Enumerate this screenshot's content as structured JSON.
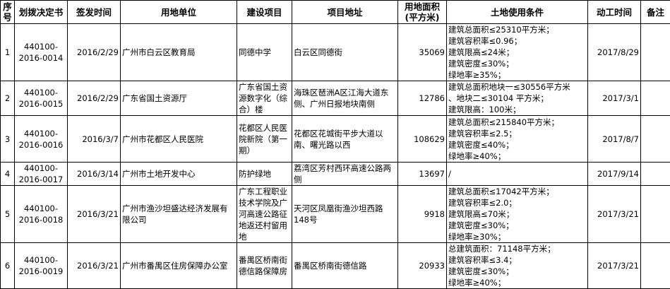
{
  "headers": [
    "序号",
    "划拨决定书",
    "签发时间",
    "用地单位",
    "建设项目",
    "项目地址",
    "用地面积(平方米)",
    "土地使用条件",
    "动工时间",
    "备注"
  ],
  "rows": [
    {
      "no": "1",
      "decision": "440100-2016-0014",
      "date": "2016/2/29",
      "unit": "广州市白云区教育局",
      "project": "同德中学",
      "address": "白云区同德街",
      "area": "35069",
      "conditions": [
        "建筑总面积≤25310平方米；",
        "建筑容积率≤0.96；",
        "建筑限高≤24米；",
        "建筑密度≤30%；",
        "绿地率≥35%；"
      ],
      "start": "2017/8/29",
      "remark": ""
    },
    {
      "no": "2",
      "decision": "440100-2016-0015",
      "date": "2016/2/29",
      "unit": "广东省国土资源厅",
      "project": "广东省国土资源数字化（综合）楼",
      "address": "海珠区琶洲A区江海大道东侧、广州日报地块南侧",
      "area": "12786",
      "conditions": [
        "建筑总面积地块一≤30556平方米",
        "、地块二≤30104 平方米；",
        "建筑限高：100米；"
      ],
      "start": "2017/3/1",
      "remark": ""
    },
    {
      "no": "3",
      "decision": "440100-2016-0016",
      "date": "2016/3/7",
      "unit": "广州市花都区人民医院",
      "project": "花都区人民医院新院（第一期）",
      "address": "花都区花城街平步大道以南、曙光路以西",
      "area": "108629",
      "conditions": [
        "建筑总面积≤215840平方米；",
        "建筑容积率≤2.5；",
        "建筑密度≤40%；",
        "绿地率≥40%；"
      ],
      "start": "2017/8/7",
      "remark": ""
    },
    {
      "no": "4",
      "decision": "440100-2016-0017",
      "date": "2016/3/14",
      "unit": "广州市土地开发中心",
      "project": "防护绿地",
      "address": "荔湾区芳村西环高速公路两侧",
      "area": "13697",
      "conditions": [
        "/"
      ],
      "start": "2017/9/14",
      "remark": ""
    },
    {
      "no": "5",
      "decision": "440100-2016-0018",
      "date": "2016/3/21",
      "unit": "广州市渔沙坦盛达经济发展有限公司",
      "project": "广东工程职业技术学院及广河高速公路征地返还村留用地",
      "address": "天河区凤凰街渔沙坦西路148号",
      "area": "9918",
      "conditions": [
        "建筑总面积≤17042平方米；",
        "建筑容积率≤2.0；",
        "建筑限高≤70米；",
        "建筑密度≤30%；",
        "绿地率≥30%；"
      ],
      "start": "2017/3/21",
      "remark": ""
    },
    {
      "no": "6",
      "decision": "440100-2016-0019",
      "date": "2016/3/21",
      "unit": "广州市番禺区住房保障办公室",
      "project": "番禺区桥南街德信路保障房",
      "address": "番禺区桥南街德信路",
      "area": "20933",
      "conditions": [
        "总建筑面积：71148平方米；",
        "建筑容积率≤3.4；",
        "建筑密度≤30%；",
        "绿地率≥40%；"
      ],
      "start": "2017/3/21",
      "remark": ""
    }
  ]
}
